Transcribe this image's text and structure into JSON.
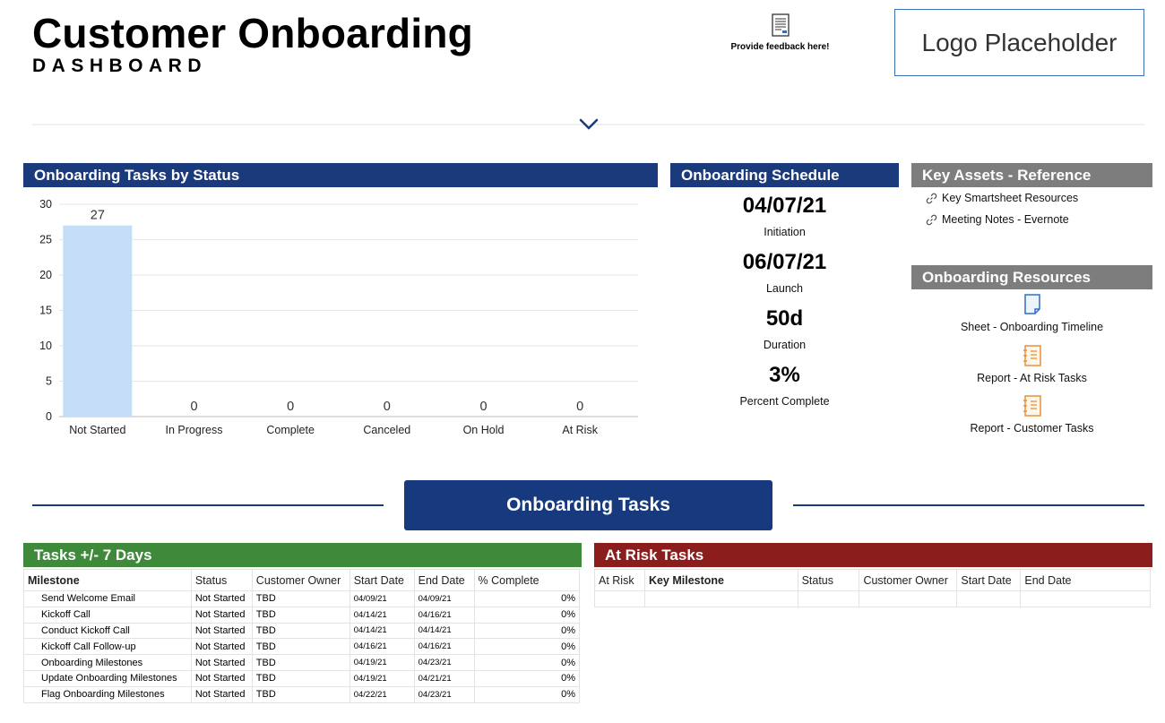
{
  "header": {
    "title": "Customer Onboarding",
    "subtitle": "DASHBOARD",
    "feedback_label": "Provide feedback here!",
    "feedback_icon": "document-icon",
    "logo_text": "Logo Placeholder",
    "expand_icon": "chevron-down-icon"
  },
  "colors": {
    "navy": "#1b3a7c",
    "gray": "#7d7d7d",
    "green": "#3f8a3a",
    "red": "#8c1d1d",
    "bar": "#c5ddf7"
  },
  "status_chart": {
    "header": "Onboarding Tasks by Status"
  },
  "chart_data": {
    "type": "bar",
    "title": "",
    "categories": [
      "Not Started",
      "In Progress",
      "Complete",
      "Canceled",
      "On Hold",
      "At Risk"
    ],
    "values": [
      27,
      0,
      0,
      0,
      0,
      0
    ],
    "data_labels": [
      "27",
      "0",
      "0",
      "0",
      "0",
      "0"
    ],
    "y_ticks": [
      "0",
      "5",
      "10",
      "15",
      "20",
      "25",
      "30"
    ],
    "ylim": [
      0,
      30
    ],
    "xlabel": "",
    "ylabel": "",
    "grid": true,
    "legend": "none"
  },
  "schedule": {
    "header": "Onboarding Schedule",
    "items": [
      {
        "value": "04/07/21",
        "label": "Initiation"
      },
      {
        "value": "06/07/21",
        "label": "Launch"
      },
      {
        "value": "50d",
        "label": "Duration"
      },
      {
        "value": "3%",
        "label": "Percent Complete"
      }
    ]
  },
  "key_assets": {
    "header": "Key Assets - Reference",
    "links": [
      "Key Smartsheet Resources",
      "Meeting Notes - Evernote"
    ],
    "link_icon": "link-icon"
  },
  "resources": {
    "header": "Onboarding Resources",
    "items": [
      {
        "label": "Sheet - Onboarding Timeline",
        "icon": "sheet-icon"
      },
      {
        "label": "Report - At Risk Tasks",
        "icon": "report-icon"
      },
      {
        "label": "Report - Customer Tasks",
        "icon": "report-icon"
      }
    ]
  },
  "section": {
    "title": "Onboarding Tasks"
  },
  "tasks_table": {
    "header": "Tasks +/- 7 Days",
    "columns": [
      "Milestone",
      "Status",
      "Customer Owner",
      "Start Date",
      "End Date",
      "% Complete"
    ],
    "rows": [
      [
        "Send Welcome Email",
        "Not Started",
        "TBD",
        "04/09/21",
        "04/09/21",
        "0%"
      ],
      [
        "Kickoff Call",
        "Not Started",
        "TBD",
        "04/14/21",
        "04/16/21",
        "0%"
      ],
      [
        "Conduct Kickoff Call",
        "Not Started",
        "TBD",
        "04/14/21",
        "04/14/21",
        "0%"
      ],
      [
        "Kickoff Call Follow-up",
        "Not Started",
        "TBD",
        "04/16/21",
        "04/16/21",
        "0%"
      ],
      [
        "Onboarding Milestones",
        "Not Started",
        "TBD",
        "04/19/21",
        "04/23/21",
        "0%"
      ],
      [
        "Update Onboarding Milestones",
        "Not Started",
        "TBD",
        "04/19/21",
        "04/21/21",
        "0%"
      ],
      [
        "Flag Onboarding Milestones",
        "Not Started",
        "TBD",
        "04/22/21",
        "04/23/21",
        "0%"
      ]
    ]
  },
  "risk_table": {
    "header": "At Risk Tasks",
    "columns": [
      "At Risk",
      "Key Milestone",
      "Status",
      "Customer Owner",
      "Start Date",
      "End Date"
    ]
  }
}
